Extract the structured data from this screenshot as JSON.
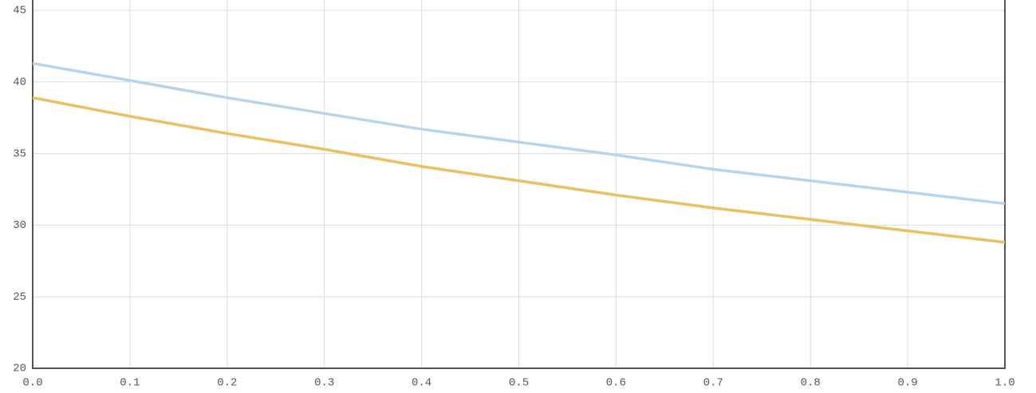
{
  "chart_data": {
    "type": "line",
    "x": [
      0,
      0.1,
      0.2,
      0.3,
      0.4,
      0.5,
      0.6,
      0.7,
      0.8,
      0.9,
      1
    ],
    "series": [
      {
        "color": "#b8d4ea",
        "values": [
          41.3,
          40.1,
          38.9,
          37.8,
          36.7,
          35.8,
          34.9,
          33.9,
          33.1,
          32.3,
          31.5
        ]
      },
      {
        "color": "#e9c062",
        "values": [
          38.9,
          37.6,
          36.4,
          35.3,
          34.1,
          33.1,
          32.1,
          31.2,
          30.4,
          29.6,
          28.8
        ]
      }
    ],
    "xlim": [
      0,
      1
    ],
    "xticks": [
      {
        "value": 0,
        "label": "0.0"
      },
      0.1,
      0.2,
      0.3,
      0.4,
      0.5,
      0.6,
      0.7,
      0.8,
      0.9,
      {
        "value": 1,
        "label": "1.0"
      }
    ],
    "ylim": [
      20,
      45
    ],
    "yticks": [
      20,
      25,
      30,
      35,
      40,
      45
    ],
    "grid": true
  }
}
